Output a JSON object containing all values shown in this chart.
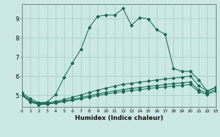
{
  "xlabel": "Humidex (Indice chaleur)",
  "bg_color": "#cce8e4",
  "grid_color": "#b0d4cc",
  "line_color": "#1a6b5a",
  "xlim": [
    0,
    23
  ],
  "ylim": [
    4.4,
    9.75
  ],
  "yticks": [
    5,
    6,
    7,
    8,
    9
  ],
  "xticks": [
    0,
    1,
    2,
    3,
    4,
    5,
    6,
    7,
    8,
    9,
    10,
    11,
    12,
    13,
    14,
    15,
    16,
    17,
    18,
    19,
    20,
    21,
    22,
    23
  ],
  "series": [
    {
      "x": [
        0,
        1,
        2,
        3,
        4,
        5,
        6,
        7,
        8,
        9,
        10,
        11,
        12,
        13,
        14,
        15,
        16,
        17,
        18,
        19,
        20,
        21,
        22,
        23
      ],
      "y": [
        5.15,
        4.82,
        4.62,
        4.65,
        5.05,
        5.95,
        6.7,
        7.4,
        8.55,
        9.12,
        9.18,
        9.18,
        9.52,
        8.65,
        9.05,
        8.98,
        8.42,
        8.18,
        6.4,
        6.25,
        6.25,
        5.8,
        5.22,
        5.42
      ]
    },
    {
      "x": [
        0,
        1,
        2,
        3,
        4,
        5,
        6,
        7,
        8,
        9,
        10,
        11,
        12,
        13,
        14,
        15,
        16,
        17,
        18,
        19,
        20,
        21,
        22,
        23
      ],
      "y": [
        5.08,
        4.72,
        4.58,
        4.6,
        4.68,
        4.78,
        4.9,
        5.02,
        5.15,
        5.27,
        5.38,
        5.48,
        5.57,
        5.63,
        5.69,
        5.74,
        5.8,
        5.85,
        5.9,
        5.95,
        6.0,
        5.5,
        5.22,
        5.4
      ]
    },
    {
      "x": [
        0,
        1,
        2,
        3,
        4,
        5,
        6,
        7,
        8,
        9,
        10,
        11,
        12,
        13,
        14,
        15,
        16,
        17,
        18,
        19,
        20,
        21,
        22,
        23
      ],
      "y": [
        5.04,
        4.68,
        4.55,
        4.57,
        4.63,
        4.71,
        4.79,
        4.88,
        4.98,
        5.07,
        5.16,
        5.23,
        5.3,
        5.36,
        5.41,
        5.46,
        5.51,
        5.56,
        5.61,
        5.65,
        5.69,
        5.28,
        5.12,
        5.3
      ]
    },
    {
      "x": [
        0,
        1,
        2,
        3,
        4,
        5,
        6,
        7,
        8,
        9,
        10,
        11,
        12,
        13,
        14,
        15,
        16,
        17,
        18,
        19,
        20,
        21,
        22,
        23
      ],
      "y": [
        5.0,
        4.65,
        4.52,
        4.54,
        4.6,
        4.67,
        4.74,
        4.82,
        4.91,
        4.99,
        5.07,
        5.14,
        5.2,
        5.25,
        5.3,
        5.35,
        5.4,
        5.44,
        5.48,
        5.52,
        5.56,
        5.18,
        5.05,
        5.22
      ]
    }
  ]
}
